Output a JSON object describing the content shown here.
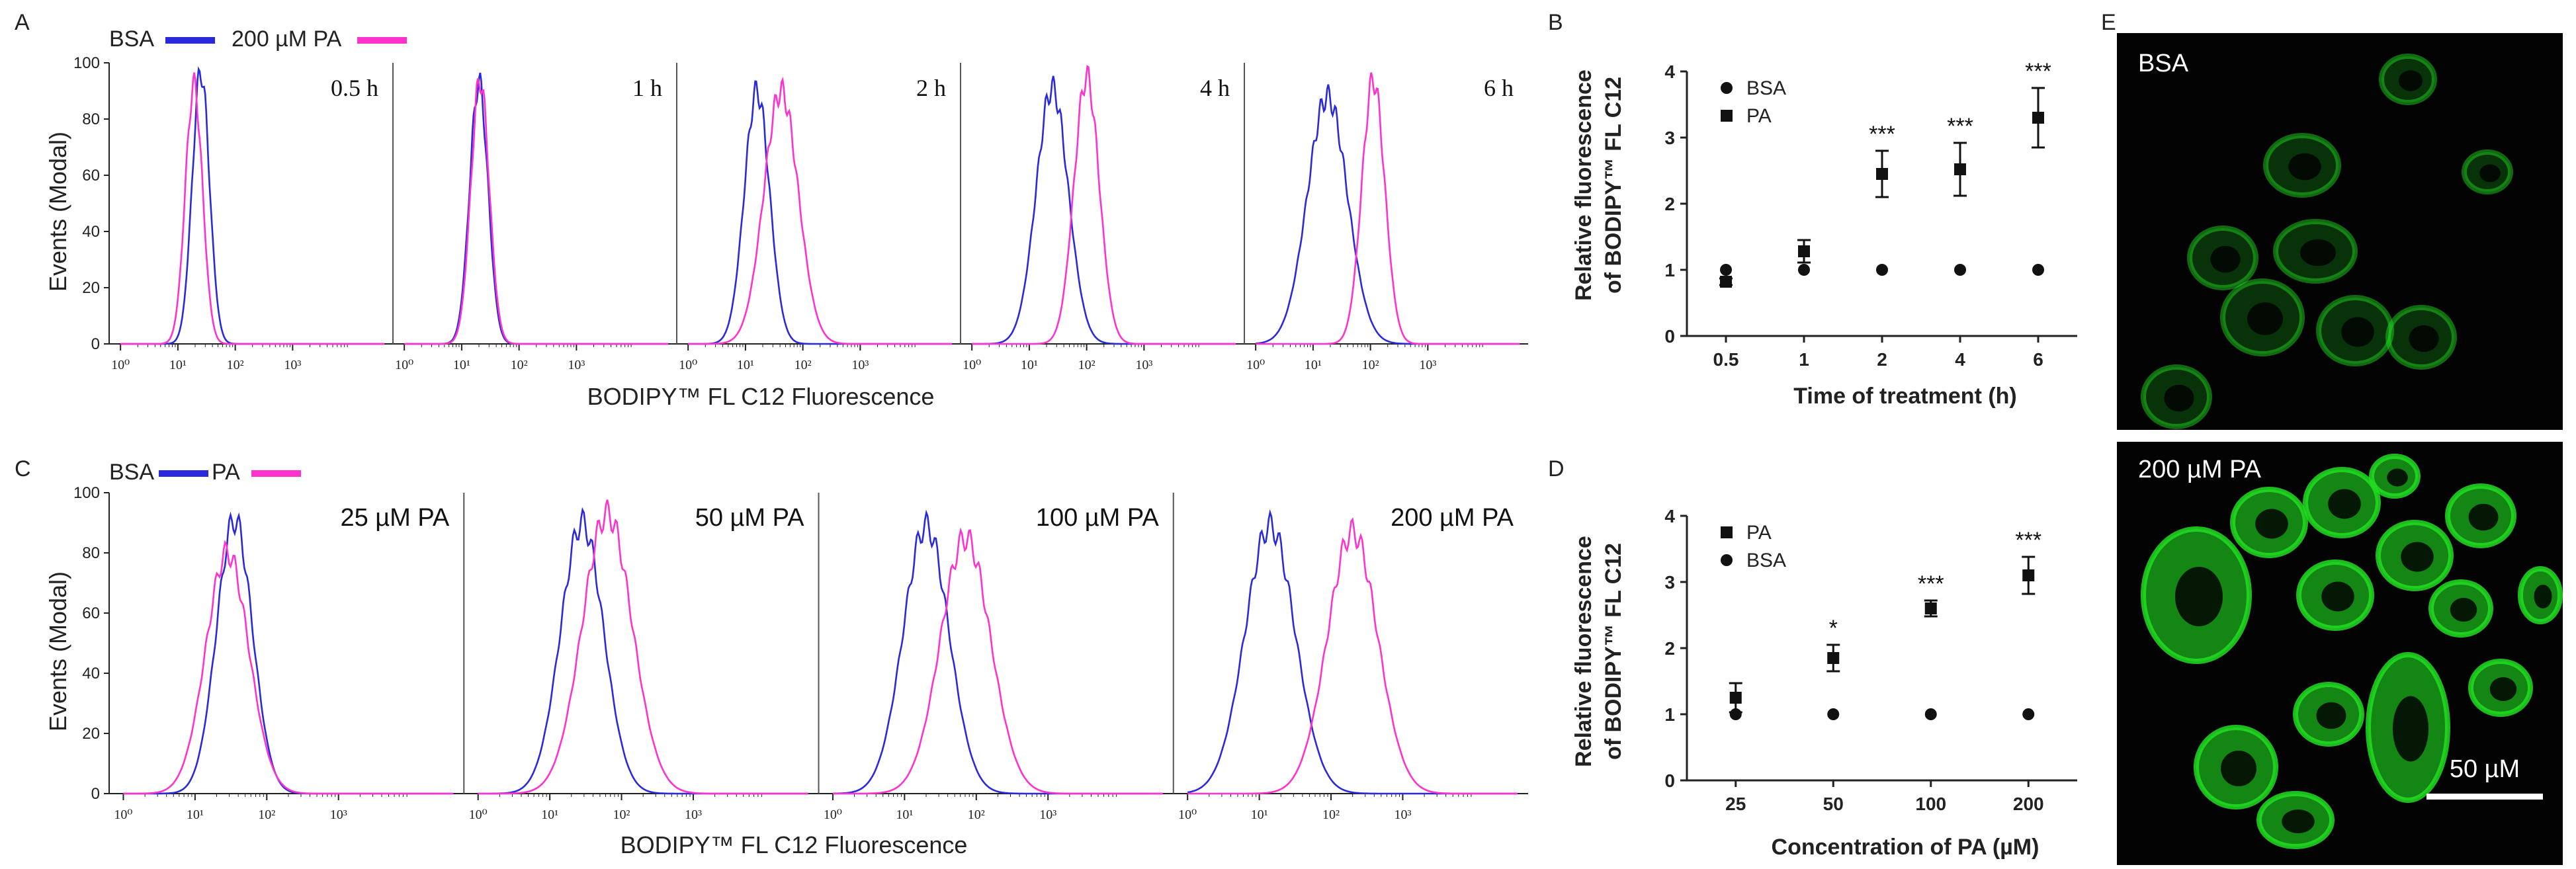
{
  "colors": {
    "bsa": "#2a2adc",
    "pa": "#ff33cc",
    "axis": "#222222",
    "divider": "#555555",
    "grid_line": "#555555",
    "micro_bg": "#020302",
    "micro_cell": "#22dd22",
    "white": "#ffffff"
  },
  "panel_letters": {
    "a": "A",
    "b": "B",
    "c": "C",
    "d": "D",
    "e": "E"
  },
  "panel_a": {
    "legend": {
      "bsa": "BSA",
      "pa": "200 µM PA"
    },
    "y_label": "Events (Modal)",
    "x_label": "BODIPY™ FL C12 Fluorescence",
    "y_ticks": [
      "0",
      "20",
      "40",
      "60",
      "80",
      "100"
    ],
    "x_ticks": [
      "10⁰",
      "10¹",
      "10²",
      "10³"
    ],
    "subplots": [
      {
        "label": "0.5 h",
        "bsa_peak_log": 1.4,
        "bsa_width": 0.15,
        "bsa_height": 97,
        "pa_peak_log": 1.28,
        "pa_width": 0.15,
        "pa_height": 92
      },
      {
        "label": "1 h",
        "bsa_peak_log": 1.3,
        "bsa_width": 0.16,
        "bsa_height": 93,
        "pa_peak_log": 1.32,
        "pa_width": 0.16,
        "pa_height": 94
      },
      {
        "label": "2 h",
        "bsa_peak_log": 1.2,
        "bsa_width": 0.22,
        "bsa_height": 90,
        "pa_peak_log": 1.62,
        "pa_width": 0.3,
        "pa_height": 90
      },
      {
        "label": "4 h",
        "bsa_peak_log": 1.4,
        "bsa_width": 0.28,
        "bsa_height": 91,
        "pa_peak_log": 2.0,
        "pa_width": 0.22,
        "pa_height": 95
      },
      {
        "label": "6 h",
        "bsa_peak_log": 1.25,
        "bsa_width": 0.35,
        "bsa_height": 88,
        "pa_peak_log": 2.05,
        "pa_width": 0.2,
        "pa_height": 94
      }
    ]
  },
  "panel_c": {
    "legend": {
      "bsa": "BSA",
      "pa": "PA"
    },
    "y_label": "Events (Modal)",
    "x_label": "BODIPY™ FL C12 Fluorescence",
    "y_ticks": [
      "0",
      "20",
      "40",
      "60",
      "80",
      "100"
    ],
    "x_ticks": [
      "10⁰",
      "10¹",
      "10²",
      "10³"
    ],
    "subplots": [
      {
        "label": "25 µM PA",
        "bsa_peak_log": 1.55,
        "bsa_width": 0.25,
        "bsa_height": 91,
        "pa_peak_log": 1.45,
        "pa_width": 0.3,
        "pa_height": 80
      },
      {
        "label": "50 µM PA",
        "bsa_peak_log": 1.45,
        "bsa_width": 0.3,
        "bsa_height": 90,
        "pa_peak_log": 1.8,
        "pa_width": 0.35,
        "pa_height": 93
      },
      {
        "label": "100 µM PA",
        "bsa_peak_log": 1.3,
        "bsa_width": 0.32,
        "bsa_height": 89,
        "pa_peak_log": 1.85,
        "pa_width": 0.35,
        "pa_height": 85
      },
      {
        "label": "200 µM PA",
        "bsa_peak_log": 1.15,
        "bsa_width": 0.35,
        "bsa_height": 89,
        "pa_peak_log": 2.3,
        "pa_width": 0.35,
        "pa_height": 87
      }
    ]
  },
  "panel_e": {
    "top_label": "BSA",
    "bottom_label": "200 µM PA",
    "scale_bar_label": "50 µM"
  },
  "chart_data": [
    {
      "type": "scatter",
      "panel": "B",
      "title": "",
      "xlabel": "Time of treatment (h)",
      "ylabel_line1": "Relative fluorescence",
      "ylabel_line2": "of BODIPY™ FL C12",
      "categories": [
        "0.5",
        "1",
        "2",
        "4",
        "6"
      ],
      "ylim": [
        0,
        4
      ],
      "y_ticks": [
        "0",
        "1",
        "2",
        "3",
        "4"
      ],
      "legend": [
        {
          "name": "BSA",
          "marker": "circle"
        },
        {
          "name": "PA",
          "marker": "square"
        }
      ],
      "series": [
        {
          "name": "BSA",
          "marker": "circle",
          "values": [
            1.0,
            1.0,
            1.0,
            1.0,
            1.0
          ],
          "errors": [
            0,
            0,
            0,
            0,
            0
          ]
        },
        {
          "name": "PA",
          "marker": "square",
          "values": [
            0.82,
            1.28,
            2.45,
            2.52,
            3.3
          ],
          "errors": [
            0.05,
            0.17,
            0.35,
            0.4,
            0.45
          ]
        }
      ],
      "annotations": [
        "",
        "",
        "***",
        "***",
        "***"
      ]
    },
    {
      "type": "scatter",
      "panel": "D",
      "title": "",
      "xlabel": "Concentration of PA (µM)",
      "ylabel_line1": "Relative fluorescence",
      "ylabel_line2": "of BODIPY™ FL C12",
      "categories": [
        "25",
        "50",
        "100",
        "200"
      ],
      "ylim": [
        0,
        4
      ],
      "y_ticks": [
        "0",
        "1",
        "2",
        "3",
        "4"
      ],
      "legend": [
        {
          "name": "PA",
          "marker": "square"
        },
        {
          "name": "BSA",
          "marker": "circle"
        }
      ],
      "series": [
        {
          "name": "PA",
          "marker": "square",
          "values": [
            1.25,
            1.85,
            2.6,
            3.1
          ],
          "errors": [
            0.22,
            0.2,
            0.12,
            0.28
          ]
        },
        {
          "name": "BSA",
          "marker": "circle",
          "values": [
            1.0,
            1.0,
            1.0,
            1.0
          ],
          "errors": [
            0,
            0,
            0,
            0
          ]
        }
      ],
      "annotations": [
        "",
        "*",
        "***",
        "***"
      ]
    }
  ]
}
